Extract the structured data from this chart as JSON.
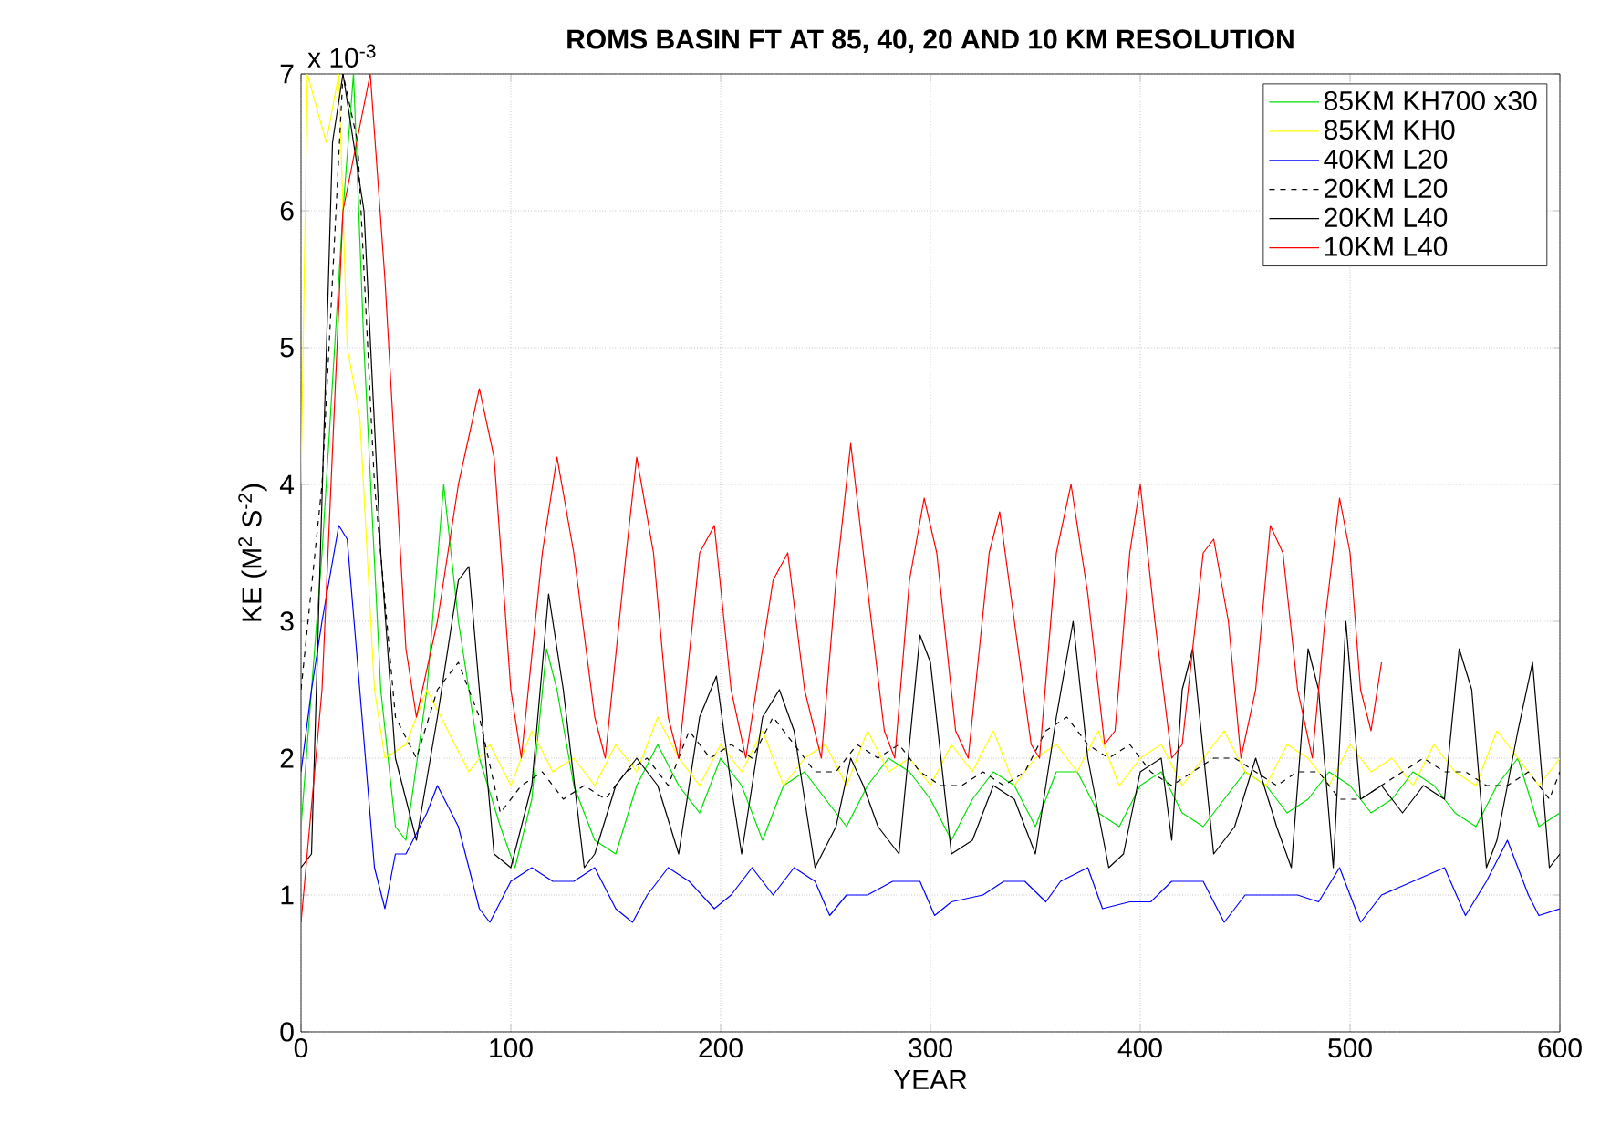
{
  "chart_data": {
    "type": "line",
    "title": "**ROMS BASIN FT AT 85, 40, 20 AND 10 KM RESOLUTION**",
    "xlabel": "YEAR",
    "ylabel": "KE (M$^{2}$ S$^{-2}$)",
    "annotations": [
      "x 10$^{-3}$"
    ],
    "xlim": [
      0,
      600
    ],
    "xticks": [
      0,
      100,
      200,
      300,
      400,
      500,
      600
    ],
    "ylim": [
      0,
      7
    ],
    "yticks": [
      0,
      1,
      2,
      3,
      4,
      5,
      6,
      7
    ],
    "grid": true,
    "legend": "top right",
    "line_style": "solid",
    "series": [
      {
        "name": "85KM KH700 x30",
        "color": "#00e000",
        "x": [
          0,
          10,
          20,
          25,
          30,
          38,
          45,
          50,
          60,
          68,
          75,
          85,
          95,
          102,
          110,
          117,
          122,
          130,
          140,
          150,
          160,
          170,
          180,
          190,
          200,
          210,
          220,
          230,
          240,
          250,
          260,
          270,
          280,
          290,
          300,
          310,
          320,
          330,
          340,
          350,
          360,
          370,
          380,
          390,
          400,
          410,
          420,
          430,
          440,
          450,
          460,
          470,
          480,
          490,
          500,
          510,
          520,
          530,
          540,
          550,
          560,
          570,
          580,
          590,
          600
        ],
        "values": [
          1.5,
          3.5,
          6.0,
          7.0,
          5.0,
          2.5,
          1.5,
          1.4,
          2.5,
          4.0,
          3.0,
          2.0,
          1.5,
          1.2,
          1.7,
          2.8,
          2.5,
          1.8,
          1.4,
          1.3,
          1.8,
          2.1,
          1.8,
          1.6,
          2.0,
          1.8,
          1.4,
          1.8,
          1.9,
          1.7,
          1.5,
          1.8,
          2.0,
          1.9,
          1.7,
          1.4,
          1.7,
          1.9,
          1.8,
          1.5,
          1.9,
          1.9,
          1.6,
          1.5,
          1.8,
          1.9,
          1.6,
          1.5,
          1.7,
          1.9,
          1.8,
          1.6,
          1.7,
          1.9,
          1.8,
          1.6,
          1.7,
          1.9,
          1.8,
          1.6,
          1.5,
          1.8,
          2.0,
          1.5,
          1.6
        ]
      },
      {
        "name": "85KM KH0",
        "color": "#ffff00",
        "x": [
          0,
          3,
          12,
          18,
          22,
          28,
          35,
          40,
          50,
          60,
          70,
          80,
          90,
          100,
          110,
          120,
          130,
          140,
          150,
          160,
          170,
          180,
          190,
          200,
          210,
          220,
          230,
          240,
          250,
          260,
          270,
          280,
          290,
          300,
          310,
          320,
          330,
          340,
          350,
          360,
          370,
          380,
          390,
          400,
          410,
          420,
          430,
          440,
          450,
          460,
          470,
          480,
          490,
          500,
          510,
          520,
          530,
          540,
          550,
          560,
          570,
          580,
          590,
          600
        ],
        "values": [
          4.0,
          7.0,
          6.5,
          7.0,
          5.0,
          4.5,
          2.5,
          2.0,
          2.1,
          2.5,
          2.2,
          1.9,
          2.1,
          1.8,
          2.2,
          1.9,
          2.0,
          1.8,
          2.1,
          1.9,
          2.3,
          2.0,
          1.8,
          2.1,
          1.9,
          2.2,
          1.8,
          2.0,
          2.1,
          1.8,
          2.2,
          1.9,
          2.0,
          1.8,
          2.1,
          1.9,
          2.2,
          1.8,
          2.0,
          2.1,
          1.9,
          2.2,
          1.8,
          2.0,
          2.1,
          1.8,
          2.0,
          2.2,
          1.9,
          1.8,
          2.1,
          2.0,
          1.8,
          2.1,
          1.9,
          2.0,
          1.8,
          2.1,
          1.9,
          1.8,
          2.2,
          2.0,
          1.8,
          2.0
        ]
      },
      {
        "name": "40KM L20",
        "color": "#0000ff",
        "x": [
          0,
          5,
          10,
          18,
          22,
          28,
          35,
          40,
          45,
          50,
          60,
          65,
          75,
          85,
          90,
          100,
          110,
          120,
          130,
          140,
          150,
          158,
          165,
          175,
          185,
          197,
          205,
          215,
          225,
          235,
          245,
          252,
          260,
          270,
          282,
          295,
          302,
          310,
          325,
          335,
          345,
          355,
          362,
          375,
          382,
          395,
          405,
          415,
          430,
          440,
          450,
          460,
          475,
          485,
          495,
          505,
          515,
          530,
          545,
          555,
          565,
          575,
          585,
          590,
          600
        ],
        "values": [
          1.9,
          2.5,
          3.0,
          3.7,
          3.6,
          2.5,
          1.2,
          0.9,
          1.3,
          1.3,
          1.6,
          1.8,
          1.5,
          0.9,
          0.8,
          1.1,
          1.2,
          1.1,
          1.1,
          1.2,
          0.9,
          0.8,
          1.0,
          1.2,
          1.1,
          0.9,
          1.0,
          1.2,
          1.0,
          1.2,
          1.1,
          0.85,
          1.0,
          1.0,
          1.1,
          1.1,
          0.85,
          0.95,
          1.0,
          1.1,
          1.1,
          0.95,
          1.1,
          1.2,
          0.9,
          0.95,
          0.95,
          1.1,
          1.1,
          0.8,
          1.0,
          1.0,
          1.0,
          0.95,
          1.2,
          0.8,
          1.0,
          1.1,
          1.2,
          0.85,
          1.1,
          1.4,
          1.0,
          0.85,
          0.9
        ]
      },
      {
        "name": "20KM L20",
        "color": "#000000",
        "line_style": "dashed",
        "x": [
          0,
          10,
          20,
          27,
          35,
          45,
          55,
          65,
          75,
          85,
          95,
          105,
          115,
          125,
          135,
          145,
          155,
          165,
          175,
          185,
          195,
          205,
          215,
          225,
          235,
          245,
          255,
          265,
          275,
          285,
          295,
          305,
          315,
          325,
          335,
          345,
          355,
          365,
          375,
          385,
          395,
          405,
          415,
          425,
          435,
          445,
          455,
          465,
          475,
          485,
          495,
          505,
          515,
          525,
          535,
          545,
          555,
          565,
          575,
          585,
          595,
          600
        ],
        "values": [
          2.5,
          4.0,
          7.0,
          6.5,
          4.0,
          2.3,
          2.0,
          2.5,
          2.7,
          2.3,
          1.6,
          1.8,
          1.9,
          1.7,
          1.8,
          1.7,
          1.9,
          2.0,
          1.8,
          2.2,
          2.0,
          2.1,
          2.0,
          2.3,
          2.1,
          1.9,
          1.9,
          2.1,
          2.0,
          2.1,
          1.9,
          1.8,
          1.8,
          1.9,
          1.8,
          1.9,
          2.2,
          2.3,
          2.1,
          2.0,
          2.1,
          1.9,
          1.8,
          1.9,
          2.0,
          2.0,
          1.9,
          1.8,
          1.9,
          1.9,
          1.7,
          1.7,
          1.8,
          1.9,
          2.0,
          1.9,
          1.9,
          1.8,
          1.8,
          1.9,
          1.7,
          1.9
        ]
      },
      {
        "name": "20KM L40",
        "color": "#000000",
        "x": [
          0,
          5,
          15,
          20,
          30,
          38,
          45,
          55,
          65,
          75,
          80,
          85,
          92,
          100,
          110,
          118,
          125,
          135,
          140,
          150,
          160,
          170,
          180,
          190,
          198,
          205,
          210,
          220,
          228,
          235,
          245,
          255,
          262,
          268,
          275,
          285,
          295,
          300,
          310,
          320,
          330,
          340,
          350,
          360,
          368,
          375,
          385,
          392,
          400,
          410,
          415,
          420,
          425,
          435,
          445,
          455,
          465,
          472,
          480,
          485,
          492,
          498,
          505,
          515,
          525,
          535,
          545,
          552,
          558,
          565,
          570,
          575,
          580,
          587,
          595,
          600
        ],
        "values": [
          1.2,
          1.3,
          6.5,
          7.0,
          6.0,
          3.5,
          2.0,
          1.4,
          2.3,
          3.3,
          3.4,
          2.5,
          1.3,
          1.2,
          1.8,
          3.2,
          2.5,
          1.2,
          1.3,
          1.8,
          2.0,
          1.8,
          1.3,
          2.3,
          2.6,
          1.8,
          1.3,
          2.3,
          2.5,
          2.2,
          1.2,
          1.5,
          2.0,
          1.8,
          1.5,
          1.3,
          2.9,
          2.7,
          1.3,
          1.4,
          1.8,
          1.7,
          1.3,
          2.3,
          3.0,
          2.0,
          1.2,
          1.3,
          1.9,
          2.0,
          1.4,
          2.5,
          2.8,
          1.3,
          1.5,
          2.0,
          1.5,
          1.2,
          2.8,
          2.5,
          1.2,
          3.0,
          1.7,
          1.8,
          1.6,
          1.8,
          1.7,
          2.8,
          2.5,
          1.2,
          1.4,
          1.8,
          2.2,
          2.7,
          1.2,
          1.3
        ]
      },
      {
        "name": "10KM L40",
        "color": "#ff0000",
        "x": [
          0,
          10,
          20,
          33,
          40,
          50,
          55,
          65,
          75,
          85,
          92,
          100,
          105,
          115,
          122,
          130,
          140,
          145,
          155,
          160,
          168,
          175,
          180,
          190,
          197,
          205,
          212,
          225,
          232,
          240,
          248,
          255,
          262,
          268,
          278,
          283,
          290,
          297,
          303,
          312,
          318,
          328,
          333,
          340,
          348,
          352,
          360,
          367,
          375,
          383,
          388,
          395,
          400,
          407,
          415,
          420,
          430,
          435,
          442,
          448,
          455,
          462,
          468,
          475,
          482,
          488,
          495,
          500,
          505,
          510,
          515
        ],
        "values": [
          0.8,
          2.5,
          6.0,
          7.0,
          5.5,
          2.8,
          2.3,
          3.0,
          4.0,
          4.7,
          4.2,
          2.5,
          2.0,
          3.5,
          4.2,
          3.5,
          2.3,
          2.0,
          3.5,
          4.2,
          3.5,
          2.3,
          2.0,
          3.5,
          3.7,
          2.5,
          2.0,
          3.3,
          3.5,
          2.5,
          2.0,
          3.3,
          4.3,
          3.5,
          2.2,
          2.0,
          3.3,
          3.9,
          3.5,
          2.2,
          2.0,
          3.5,
          3.8,
          3.0,
          2.1,
          2.0,
          3.5,
          4.0,
          3.2,
          2.1,
          2.2,
          3.5,
          4.0,
          3.0,
          2.0,
          2.1,
          3.5,
          3.6,
          3.0,
          2.0,
          2.5,
          3.7,
          3.5,
          2.5,
          2.0,
          3.0,
          3.9,
          3.5,
          2.5,
          2.2,
          2.7
        ]
      }
    ]
  }
}
